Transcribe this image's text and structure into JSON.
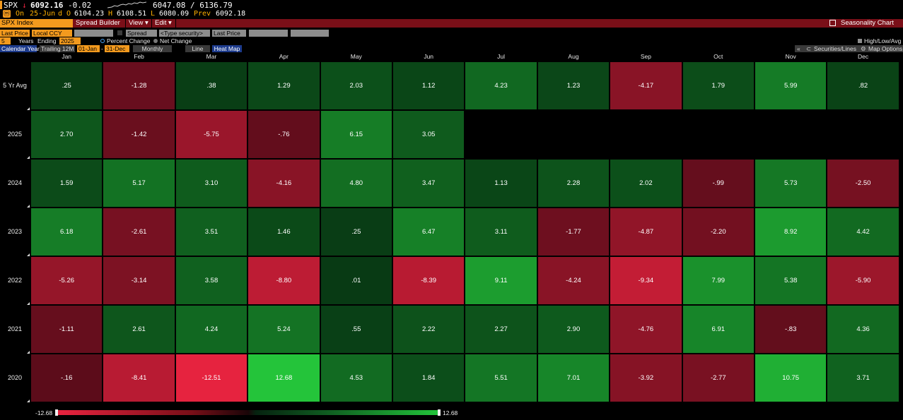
{
  "ticker": {
    "symbol": "SPX",
    "arrow": "↓",
    "last": "6092.16",
    "change": "-0.02",
    "range": "6047.08 / 6136.79",
    "line2_on": "On",
    "line2_date": "25-Jun",
    "line2_d": "d",
    "open_label": "O",
    "open": "6104.23",
    "high_label": "H",
    "high": "6108.51",
    "low_label": "L",
    "low": "6080.09",
    "prev_label": "Prev",
    "prev": "6092.18"
  },
  "menubar": {
    "title": "SPX Index",
    "spread_builder": "Spread Builder",
    "view": "View ▾",
    "edit": "Edit ▾",
    "seasonality": "Seasonality Chart"
  },
  "controls": {
    "last_price": "Last Price",
    "local_ccy": "Local CCY",
    "spread": "Spread",
    "type_security": "<Type security>",
    "last_price2": "Last Price",
    "years_num": "5",
    "years_label": "Years",
    "ending_label": "Ending",
    "ending_year": "2025",
    "percent_change": "Percent Change",
    "net_change": "Net Change",
    "high_low_avg": "High/Low/Avg",
    "calendar_year": "Calendar Year",
    "trailing": "Trailing 12M",
    "date_from": "01-Jan",
    "date_to": "31-Dec",
    "monthly": "Monthly",
    "line": "Line",
    "heat_map": "Heat Map",
    "securities_lines": "Securities/Lines",
    "map_options": "Map Options",
    "collapse": "«"
  },
  "months": [
    "Jan",
    "Feb",
    "Mar",
    "Apr",
    "May",
    "Jun",
    "Jul",
    "Aug",
    "Sep",
    "Oct",
    "Nov",
    "Dec"
  ],
  "rows": [
    {
      "label": "5 Yr Avg",
      "values": [
        ".25",
        "-1.28",
        ".38",
        "1.29",
        "2.03",
        "1.12",
        "4.23",
        "1.23",
        "-4.17",
        "1.79",
        "5.99",
        ".82"
      ],
      "nums": [
        0.25,
        -1.28,
        0.38,
        1.29,
        2.03,
        1.12,
        4.23,
        1.23,
        -4.17,
        1.79,
        5.99,
        0.82
      ]
    },
    {
      "label": "2025",
      "values": [
        "2.70",
        "-1.42",
        "-5.75",
        "-.76",
        "6.15",
        "3.05",
        "",
        "",
        "",
        "",
        "",
        ""
      ],
      "nums": [
        2.7,
        -1.42,
        -5.75,
        -0.76,
        6.15,
        3.05,
        null,
        null,
        null,
        null,
        null,
        null
      ]
    },
    {
      "label": "2024",
      "values": [
        "1.59",
        "5.17",
        "3.10",
        "-4.16",
        "4.80",
        "3.47",
        "1.13",
        "2.28",
        "2.02",
        "-.99",
        "5.73",
        "-2.50"
      ],
      "nums": [
        1.59,
        5.17,
        3.1,
        -4.16,
        4.8,
        3.47,
        1.13,
        2.28,
        2.02,
        -0.99,
        5.73,
        -2.5
      ]
    },
    {
      "label": "2023",
      "values": [
        "6.18",
        "-2.61",
        "3.51",
        "1.46",
        ".25",
        "6.47",
        "3.11",
        "-1.77",
        "-4.87",
        "-2.20",
        "8.92",
        "4.42"
      ],
      "nums": [
        6.18,
        -2.61,
        3.51,
        1.46,
        0.25,
        6.47,
        3.11,
        -1.77,
        -4.87,
        -2.2,
        8.92,
        4.42
      ]
    },
    {
      "label": "2022",
      "values": [
        "-5.26",
        "-3.14",
        "3.58",
        "-8.80",
        ".01",
        "-8.39",
        "9.11",
        "-4.24",
        "-9.34",
        "7.99",
        "5.38",
        "-5.90"
      ],
      "nums": [
        -5.26,
        -3.14,
        3.58,
        -8.8,
        0.01,
        -8.39,
        9.11,
        -4.24,
        -9.34,
        7.99,
        5.38,
        -5.9
      ]
    },
    {
      "label": "2021",
      "values": [
        "-1.11",
        "2.61",
        "4.24",
        "5.24",
        ".55",
        "2.22",
        "2.27",
        "2.90",
        "-4.76",
        "6.91",
        "-.83",
        "4.36"
      ],
      "nums": [
        -1.11,
        2.61,
        4.24,
        5.24,
        0.55,
        2.22,
        2.27,
        2.9,
        -4.76,
        6.91,
        -0.83,
        4.36
      ]
    },
    {
      "label": "2020",
      "values": [
        "-.16",
        "-8.41",
        "-12.51",
        "12.68",
        "4.53",
        "1.84",
        "5.51",
        "7.01",
        "-3.92",
        "-2.77",
        "10.75",
        "3.71"
      ],
      "nums": [
        -0.16,
        -8.41,
        -12.51,
        12.68,
        4.53,
        1.84,
        5.51,
        7.01,
        -3.92,
        -2.77,
        10.75,
        3.71
      ]
    }
  ],
  "legend": {
    "min_label": "-12.68",
    "max_label": "12.68",
    "min": -12.68,
    "max": 12.68
  },
  "colors": {
    "neg": "#e8233f",
    "pos": "#22c43a",
    "dark_neg": "#5a0c1a",
    "dark_pos": "#0a3a14",
    "accent": "#f39a1e",
    "bar": "#7a0f18"
  }
}
